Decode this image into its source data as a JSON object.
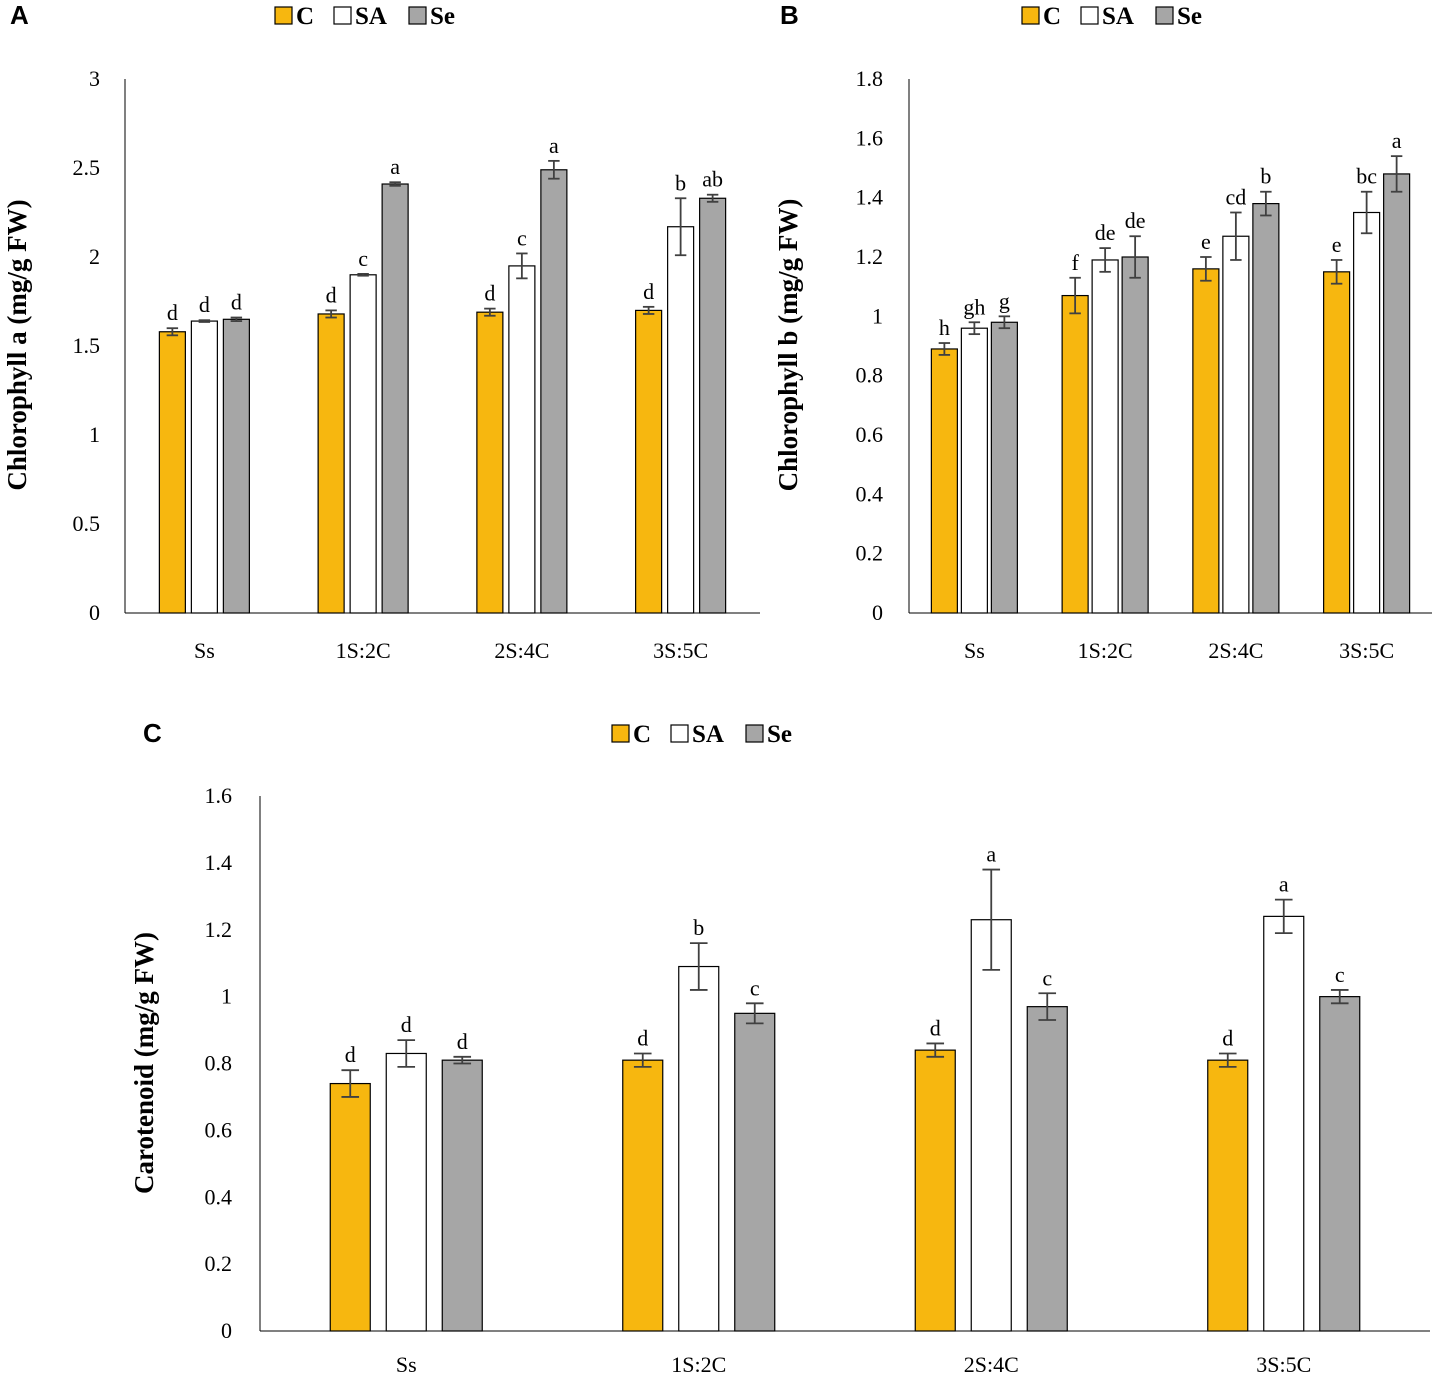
{
  "colors": {
    "C": "#F7B70F",
    "SA": "#FFFFFF",
    "Se": "#A6A6A6",
    "stroke": "#000000",
    "error": "#404040"
  },
  "legend": [
    {
      "key": "C",
      "label": "C"
    },
    {
      "key": "SA",
      "label": "SA"
    },
    {
      "key": "Se",
      "label": "Se"
    }
  ],
  "chart_data": [
    {
      "panel": "A",
      "type": "bar",
      "title": "",
      "xlabel": "",
      "ylabel": "Chlorophyll a (mg/g FW)",
      "ylim": [
        0,
        3
      ],
      "yticks": [
        "0",
        "0.5",
        "1",
        "1.5",
        "2",
        "2.5",
        "3"
      ],
      "yticks_values": [
        0,
        0.5,
        1,
        1.5,
        2,
        2.5,
        3
      ],
      "categories": [
        "Ss",
        "1S:2C",
        "2S:4C",
        "3S:5C"
      ],
      "series": [
        {
          "name": "C",
          "values": [
            1.58,
            1.68,
            1.69,
            1.7
          ],
          "errors": [
            0.02,
            0.02,
            0.02,
            0.02
          ],
          "letters": [
            "d",
            "d",
            "d",
            "d"
          ]
        },
        {
          "name": "SA",
          "values": [
            1.64,
            1.9,
            1.95,
            2.17
          ],
          "errors": [
            0.005,
            0.005,
            0.07,
            0.16
          ],
          "letters": [
            "d",
            "c",
            "c",
            "b"
          ]
        },
        {
          "name": "Se",
          "values": [
            1.65,
            2.41,
            2.49,
            2.33
          ],
          "errors": [
            0.01,
            0.01,
            0.05,
            0.02
          ],
          "letters": [
            "d",
            "a",
            "a",
            "ab"
          ]
        }
      ]
    },
    {
      "panel": "B",
      "type": "bar",
      "title": "",
      "xlabel": "",
      "ylabel": "Chlorophyll b (mg/g FW)",
      "ylim": [
        0,
        1.8
      ],
      "yticks": [
        "0",
        "0.2",
        "0.4",
        "0.6",
        "0.8",
        "1",
        "1.2",
        "1.4",
        "1.6",
        "1.8"
      ],
      "yticks_values": [
        0,
        0.2,
        0.4,
        0.6,
        0.8,
        1.0,
        1.2,
        1.4,
        1.6,
        1.8
      ],
      "categories": [
        "Ss",
        "1S:2C",
        "2S:4C",
        "3S:5C"
      ],
      "series": [
        {
          "name": "C",
          "values": [
            0.89,
            1.07,
            1.16,
            1.15
          ],
          "errors": [
            0.02,
            0.06,
            0.04,
            0.04
          ],
          "letters": [
            "h",
            "f",
            "e",
            "e"
          ]
        },
        {
          "name": "SA",
          "values": [
            0.96,
            1.19,
            1.27,
            1.35
          ],
          "errors": [
            0.02,
            0.04,
            0.08,
            0.07
          ],
          "letters": [
            "gh",
            "de",
            "cd",
            "bc"
          ]
        },
        {
          "name": "Se",
          "values": [
            0.98,
            1.2,
            1.38,
            1.48
          ],
          "errors": [
            0.02,
            0.07,
            0.04,
            0.06
          ],
          "letters": [
            "g",
            "de",
            "b",
            "a"
          ]
        }
      ]
    },
    {
      "panel": "C",
      "type": "bar",
      "title": "",
      "xlabel": "",
      "ylabel": "Carotenoid  (mg/g FW)",
      "ylim": [
        0,
        1.6
      ],
      "yticks": [
        "0",
        "0.2",
        "0.4",
        "0.6",
        "0.8",
        "1",
        "1.2",
        "1.4",
        "1.6"
      ],
      "yticks_values": [
        0,
        0.2,
        0.4,
        0.6,
        0.8,
        1.0,
        1.2,
        1.4,
        1.6
      ],
      "categories": [
        "Ss",
        "1S:2C",
        "2S:4C",
        "3S:5C"
      ],
      "series": [
        {
          "name": "C",
          "values": [
            0.74,
            0.81,
            0.84,
            0.81
          ],
          "errors": [
            0.04,
            0.02,
            0.02,
            0.02
          ],
          "letters": [
            "d",
            "d",
            "d",
            "d"
          ]
        },
        {
          "name": "SA",
          "values": [
            0.83,
            1.09,
            1.23,
            1.24
          ],
          "errors": [
            0.04,
            0.07,
            0.15,
            0.05
          ],
          "letters": [
            "d",
            "b",
            "a",
            "a"
          ]
        },
        {
          "name": "Se",
          "values": [
            0.81,
            0.95,
            0.97,
            1.0
          ],
          "errors": [
            0.01,
            0.03,
            0.04,
            0.02
          ],
          "letters": [
            "d",
            "c",
            "c",
            "c"
          ]
        }
      ]
    }
  ]
}
